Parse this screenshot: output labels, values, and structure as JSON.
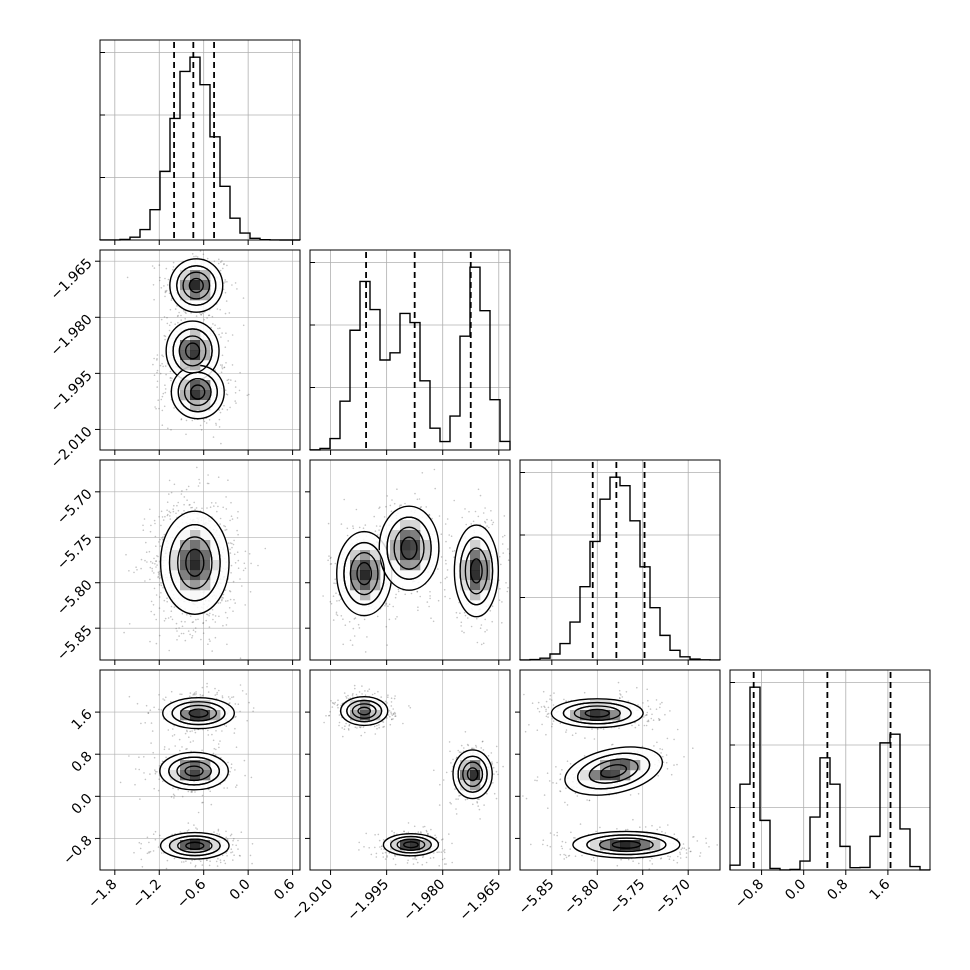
{
  "chart_data": {
    "type": "corner",
    "grid": true,
    "quantile_lines": "dashed",
    "colors": {
      "line": "#000000",
      "grid": "#b0b0b0",
      "points": "#555555",
      "density": "#1a1a1a"
    },
    "parameters": [
      {
        "range": [
          -2.0,
          0.7
        ],
        "ticks": [
          -1.8,
          -1.2,
          -0.6,
          0.0,
          0.6
        ],
        "tick_labels": [
          "−1.8",
          "−1.2",
          "−0.6",
          "0.0",
          "0.6"
        ],
        "quantiles": [
          -1.0,
          -0.74,
          -0.46
        ],
        "modes": [
          {
            "mean": -0.74,
            "sd": 0.27,
            "weight": 1.0
          }
        ]
      },
      {
        "range": [
          -2.0155,
          -1.962
        ],
        "ticks": [
          -2.01,
          -1.995,
          -1.98,
          -1.965
        ],
        "tick_labels": [
          "−2.010",
          "−1.995",
          "−1.980",
          "−1.965"
        ],
        "quantiles": [
          -2.0005,
          -1.9875,
          -1.9725
        ],
        "modes": [
          {
            "mean": -2.0005,
            "sd": 0.0035,
            "weight": 0.36
          },
          {
            "mean": -1.989,
            "sd": 0.0035,
            "weight": 0.3
          },
          {
            "mean": -1.971,
            "sd": 0.003,
            "weight": 0.34
          }
        ]
      },
      {
        "range": [
          -5.885,
          -5.665
        ],
        "ticks": [
          -5.85,
          -5.8,
          -5.75,
          -5.7
        ],
        "tick_labels": [
          "−5.85",
          "−5.80",
          "−5.75",
          "−5.70"
        ],
        "quantiles": [
          -5.805,
          -5.779,
          -5.748
        ],
        "modes": [
          {
            "mean": -5.778,
            "sd": 0.026,
            "weight": 1.0
          }
        ]
      },
      {
        "range": [
          -1.4,
          2.4
        ],
        "ticks": [
          -0.8,
          0.0,
          0.8,
          1.6
        ],
        "tick_labels": [
          "−0.8",
          "0.0",
          "0.8",
          "1.6"
        ],
        "quantiles": [
          -0.95,
          0.45,
          1.65
        ],
        "modes": [
          {
            "mean": -0.95,
            "sd": 0.12,
            "weight": 0.34
          },
          {
            "mean": 0.45,
            "sd": 0.18,
            "weight": 0.3
          },
          {
            "mean": 1.65,
            "sd": 0.16,
            "weight": 0.36
          }
        ]
      }
    ],
    "blobs": {
      "1-0": [
        {
          "x": -0.7,
          "y": -1.9715,
          "sx": 0.17,
          "sy": 0.0034,
          "w": 0.34
        },
        {
          "x": -0.75,
          "y": -1.989,
          "sx": 0.17,
          "sy": 0.0038,
          "w": 0.3
        },
        {
          "x": -0.68,
          "y": -2.0,
          "sx": 0.17,
          "sy": 0.0034,
          "w": 0.36
        }
      ],
      "2-0": [
        {
          "x": -0.72,
          "y": -5.778,
          "sx": 0.22,
          "sy": 0.027,
          "w": 1.0
        }
      ],
      "2-1": [
        {
          "x": -2.001,
          "y": -5.79,
          "sx": 0.0035,
          "sy": 0.022,
          "w": 0.36
        },
        {
          "x": -1.989,
          "y": -5.762,
          "sx": 0.0038,
          "sy": 0.022,
          "w": 0.3
        },
        {
          "x": -1.971,
          "y": -5.787,
          "sx": 0.0028,
          "sy": 0.024,
          "w": 0.34
        }
      ],
      "3-0": [
        {
          "x": -0.67,
          "y": 1.58,
          "sx": 0.23,
          "sy": 0.14,
          "w": 0.36
        },
        {
          "x": -0.73,
          "y": 0.48,
          "sx": 0.22,
          "sy": 0.17,
          "w": 0.3
        },
        {
          "x": -0.72,
          "y": -0.94,
          "sx": 0.22,
          "sy": 0.12,
          "w": 0.34
        }
      ],
      "3-1": [
        {
          "x": -2.001,
          "y": 1.62,
          "sx": 0.003,
          "sy": 0.13,
          "w": 0.36
        },
        {
          "x": -1.972,
          "y": 0.42,
          "sx": 0.0025,
          "sy": 0.22,
          "w": 0.3
        },
        {
          "x": -1.9885,
          "y": -0.92,
          "sx": 0.0035,
          "sy": 0.1,
          "w": 0.34
        }
      ],
      "3-2": [
        {
          "x": -5.8,
          "y": 1.58,
          "sx": 0.024,
          "sy": 0.13,
          "w": 0.36,
          "rho": 0.0
        },
        {
          "x": -5.782,
          "y": 0.48,
          "sx": 0.026,
          "sy": 0.2,
          "w": 0.3,
          "rho": 0.55
        },
        {
          "x": -5.768,
          "y": -0.92,
          "sx": 0.028,
          "sy": 0.12,
          "w": 0.34,
          "rho": 0.0
        }
      ]
    }
  }
}
